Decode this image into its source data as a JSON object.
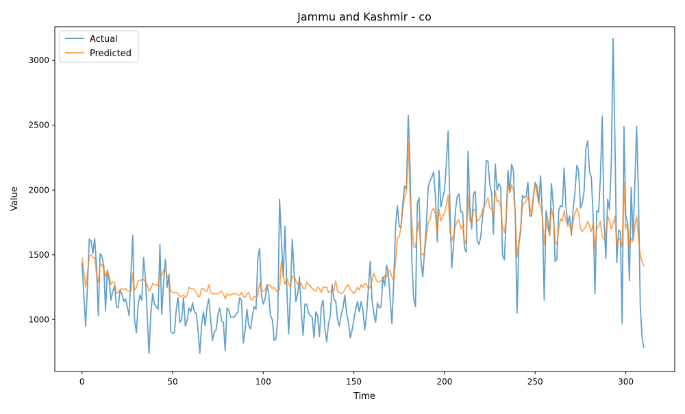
{
  "chart_data": {
    "type": "line",
    "title": "Jammu and Kashmir - co",
    "xlabel": "Time",
    "ylabel": "Value",
    "xlim": [
      -15,
      327
    ],
    "ylim": [
      600,
      3260
    ],
    "xticks": [
      0,
      50,
      100,
      150,
      200,
      250,
      300
    ],
    "yticks": [
      1000,
      1500,
      2000,
      2500,
      3000
    ],
    "legend_position": "upper-left",
    "grid": false,
    "series": [
      {
        "name": "Actual",
        "color": "#1f77b4",
        "opacity": 0.7,
        "values": [
          1440,
          1200,
          950,
          1250,
          1620,
          1610,
          1510,
          1625,
          1420,
          1030,
          1510,
          1490,
          1420,
          1070,
          1380,
          1300,
          1150,
          1220,
          1260,
          1100,
          1095,
          1230,
          1200,
          1140,
          1160,
          1100,
          1030,
          1350,
          1650,
          1000,
          900,
          1120,
          1190,
          1150,
          1480,
          1320,
          1030,
          740,
          1050,
          1200,
          1120,
          1100,
          1080,
          1580,
          1040,
          1280,
          1465,
          1250,
          1350,
          910,
          895,
          900,
          1080,
          1170,
          980,
          1000,
          1170,
          950,
          990,
          1090,
          1060,
          1130,
          1060,
          1050,
          920,
          740,
          960,
          1060,
          950,
          1100,
          1160,
          1000,
          840,
          910,
          920,
          1040,
          1090,
          990,
          980,
          760,
          1090,
          1070,
          1020,
          1020,
          1020,
          1040,
          1060,
          1170,
          1150,
          820,
          920,
          1080,
          950,
          930,
          1030,
          1100,
          1080,
          1470,
          1550,
          1190,
          1120,
          1160,
          1270,
          1200,
          1030,
          1000,
          840,
          850,
          1000,
          1930,
          1620,
          1330,
          1720,
          1250,
          890,
          1200,
          1620,
          1370,
          1140,
          1200,
          1330,
          1060,
          880,
          1120,
          1120,
          1050,
          1030,
          1020,
          860,
          1060,
          1030,
          870,
          1100,
          1150,
          930,
          830,
          970,
          1030,
          1270,
          1160,
          1140,
          1000,
          950,
          1040,
          1090,
          1190,
          1050,
          980,
          860,
          920,
          1000,
          1080,
          1140,
          1060,
          1140,
          1070,
          920,
          1040,
          1240,
          1450,
          1150,
          1050,
          980,
          1130,
          1090,
          1100,
          1330,
          1260,
          1420,
          1360,
          1160,
          970,
          1300,
          1720,
          1880,
          1720,
          1710,
          1900,
          2030,
          2010,
          2575,
          2170,
          1450,
          1160,
          1100,
          1900,
          1940,
          1460,
          1330,
          1530,
          1740,
          2020,
          2070,
          2100,
          2140,
          1950,
          1600,
          2150,
          1870,
          1940,
          2000,
          2200,
          2455,
          1860,
          1400,
          1580,
          1840,
          1950,
          1970,
          1830,
          1830,
          1550,
          1520,
          2300,
          1870,
          1700,
          1970,
          1990,
          1610,
          1580,
          1640,
          1800,
          1890,
          2230,
          2220,
          2040,
          1970,
          1660,
          2200,
          2000,
          2050,
          2020,
          1500,
          1460,
          1770,
          2150,
          1980,
          2200,
          2150,
          1810,
          1050,
          1580,
          1680,
          1960,
          1940,
          1950,
          2060,
          1800,
          1800,
          1940,
          2060,
          2030,
          1900,
          2110,
          1800,
          1150,
          1840,
          1760,
          1650,
          2050,
          1880,
          1450,
          1470,
          1840,
          1880,
          1870,
          2170,
          1870,
          1740,
          1800,
          1650,
          1860,
          1990,
          2190,
          2150,
          1860,
          1900,
          1990,
          2320,
          2380,
          2140,
          2100,
          1790,
          1200,
          1840,
          1830,
          2100,
          2570,
          1760,
          1470,
          1930,
          1850,
          2200,
          3170,
          2400,
          1440,
          1690,
          1680,
          970,
          2490,
          1800,
          1750,
          1300,
          2020,
          1620,
          2050,
          2490,
          1950,
          1100,
          860,
          780
        ]
      },
      {
        "name": "Predicted",
        "color": "#ff7f0e",
        "opacity": 0.7,
        "values": [
          1480,
          1380,
          1250,
          1350,
          1490,
          1500,
          1480,
          1480,
          1350,
          1290,
          1420,
          1430,
          1390,
          1330,
          1380,
          1330,
          1270,
          1290,
          1290,
          1200,
          1210,
          1230,
          1240,
          1230,
          1240,
          1220,
          1220,
          1220,
          1360,
          1230,
          1250,
          1300,
          1300,
          1310,
          1310,
          1290,
          1270,
          1220,
          1240,
          1280,
          1270,
          1270,
          1260,
          1360,
          1340,
          1380,
          1400,
          1330,
          1310,
          1220,
          1210,
          1210,
          1210,
          1200,
          1180,
          1180,
          1190,
          1170,
          1190,
          1250,
          1240,
          1240,
          1230,
          1210,
          1180,
          1180,
          1240,
          1240,
          1220,
          1220,
          1270,
          1210,
          1200,
          1200,
          1200,
          1200,
          1210,
          1220,
          1200,
          1160,
          1200,
          1190,
          1190,
          1200,
          1200,
          1200,
          1190,
          1190,
          1210,
          1180,
          1170,
          1200,
          1210,
          1160,
          1150,
          1180,
          1170,
          1190,
          1280,
          1230,
          1220,
          1230,
          1260,
          1270,
          1260,
          1240,
          1250,
          1230,
          1210,
          1240,
          1450,
          1350,
          1270,
          1320,
          1280,
          1250,
          1330,
          1340,
          1300,
          1270,
          1290,
          1280,
          1240,
          1240,
          1290,
          1270,
          1260,
          1240,
          1230,
          1220,
          1250,
          1240,
          1210,
          1250,
          1250,
          1250,
          1210,
          1220,
          1230,
          1230,
          1300,
          1220,
          1210,
          1200,
          1210,
          1230,
          1260,
          1270,
          1230,
          1220,
          1200,
          1220,
          1250,
          1230,
          1270,
          1250,
          1280,
          1270,
          1240,
          1250,
          1300,
          1360,
          1320,
          1290,
          1290,
          1300,
          1300,
          1340,
          1330,
          1380,
          1380,
          1330,
          1300,
          1450,
          1630,
          1640,
          1720,
          1860,
          1950,
          1980,
          2370,
          1950,
          1740,
          1560,
          1560,
          1690,
          1760,
          1510,
          1500,
          1520,
          1640,
          1750,
          1770,
          1840,
          1860,
          1810,
          1660,
          1850,
          1760,
          1800,
          1820,
          1880,
          1960,
          1680,
          1610,
          1650,
          1720,
          1760,
          1770,
          1700,
          1730,
          1580,
          1620,
          1960,
          1760,
          1740,
          1850,
          1850,
          1760,
          1770,
          1800,
          1850,
          1870,
          1910,
          1940,
          1860,
          1860,
          1790,
          1990,
          1910,
          1920,
          1870,
          1720,
          1670,
          1780,
          2050,
          1980,
          2040,
          2000,
          1830,
          1480,
          1600,
          1710,
          1880,
          1900,
          1910,
          1950,
          1880,
          1800,
          1960,
          2050,
          1970,
          1900,
          1880,
          1790,
          1580,
          1760,
          1700,
          1660,
          1860,
          1780,
          1610,
          1580,
          1700,
          1780,
          1760,
          1840,
          1760,
          1720,
          1740,
          1670,
          1760,
          1820,
          1860,
          1820,
          1700,
          1680,
          1700,
          1720,
          1760,
          1720,
          1680,
          1740,
          1540,
          1700,
          1720,
          1760,
          1640,
          1620,
          1650,
          1800,
          1760,
          1700,
          1740,
          1800,
          1580,
          1620,
          1620,
          1560,
          2060,
          1700,
          1750,
          1550,
          1630,
          1600,
          1720,
          1800,
          1630,
          1500,
          1450,
          1410
        ]
      }
    ]
  }
}
